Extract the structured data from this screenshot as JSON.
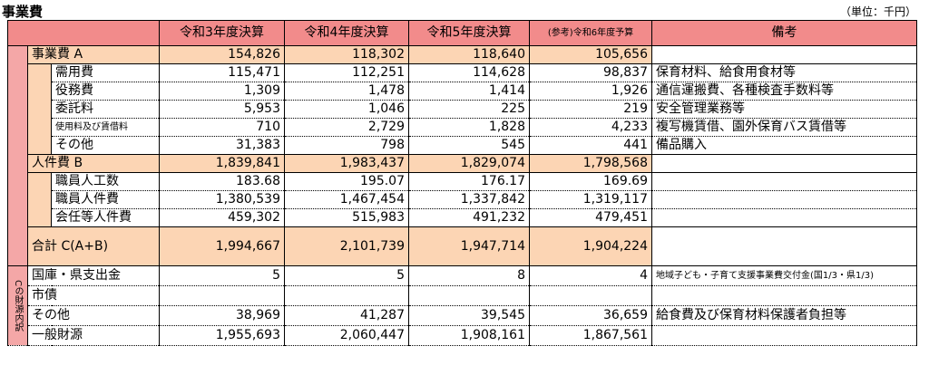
{
  "title": "事業費",
  "unit": "（単位：千円）",
  "columns": [
    "令和3年度決算",
    "令和4年度決算",
    "令和5年度決算",
    "(参考)令和6年度予算",
    "備考"
  ],
  "sections": [
    {
      "label": "事業費 A",
      "values": [
        "154,826",
        "118,302",
        "118,640",
        "105,656"
      ],
      "items": [
        {
          "label": "需用費",
          "values": [
            "115,471",
            "112,251",
            "114,628",
            "98,837"
          ],
          "note": "保育材料、給食用食材等"
        },
        {
          "label": "役務費",
          "values": [
            "1,309",
            "1,478",
            "1,414",
            "1,926"
          ],
          "note": "通信運搬費、各種検査手数料等"
        },
        {
          "label": "委託料",
          "values": [
            "5,953",
            "1,046",
            "225",
            "219"
          ],
          "note": "安全管理業務等"
        },
        {
          "label": "使用料及び賃借料",
          "values": [
            "710",
            "2,729",
            "1,828",
            "4,233"
          ],
          "note": "複写機賃借、園外保育バス賃借等"
        },
        {
          "label": "その他",
          "values": [
            "31,383",
            "798",
            "545",
            "441"
          ],
          "note": "備品購入"
        }
      ]
    },
    {
      "label": "人件費 B",
      "values": [
        "1,839,841",
        "1,983,437",
        "1,829,074",
        "1,798,568"
      ],
      "items": [
        {
          "label": "職員人工数",
          "values": [
            "183.68",
            "195.07",
            "176.17",
            "169.69"
          ]
        },
        {
          "label": "職員人件費",
          "values": [
            "1,380,539",
            "1,467,454",
            "1,337,842",
            "1,319,117"
          ]
        },
        {
          "label": "会任等人件費",
          "values": [
            "459,302",
            "515,983",
            "491,232",
            "479,451"
          ]
        }
      ]
    }
  ],
  "total": {
    "label": "合計 C(A+B)",
    "values": [
      "1,994,667",
      "2,101,739",
      "1,947,714",
      "1,904,224"
    ]
  },
  "funding": {
    "label": "Cの財源内訳",
    "items": [
      {
        "label": "国庫・県支出金",
        "values": [
          "5",
          "5",
          "8",
          "4"
        ],
        "note": "地域子ども・子育て支援事業費交付金(国1/3・県1/3)"
      },
      {
        "label": "市債",
        "values": [
          "",
          "",
          "",
          ""
        ]
      },
      {
        "label": "その他",
        "values": [
          "38,969",
          "41,287",
          "39,545",
          "36,659"
        ],
        "note": "給食費及び保育材料保護者負担等"
      },
      {
        "label": "一般財源",
        "values": [
          "1,955,693",
          "2,060,447",
          "1,908,161",
          "1,867,561"
        ]
      }
    ]
  }
}
